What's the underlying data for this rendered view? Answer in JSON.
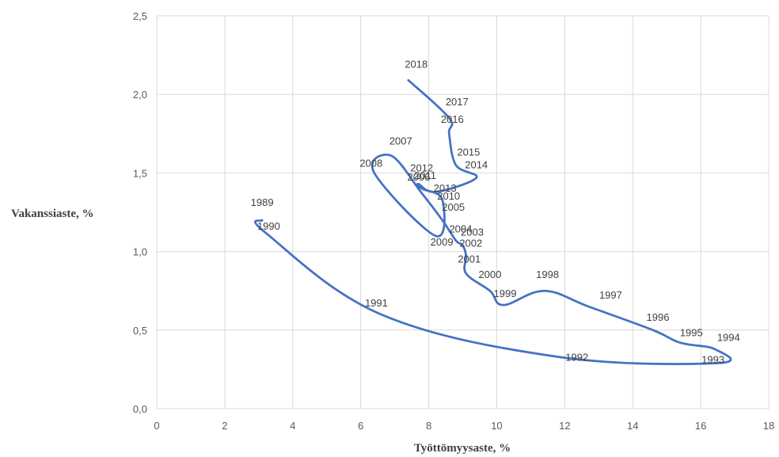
{
  "chart_data": {
    "type": "line",
    "xlabel": "Työttömyysaste, %",
    "ylabel": "Vakanssiaste, %",
    "xlim": [
      0,
      18
    ],
    "ylim": [
      0,
      2.5
    ],
    "x_ticks": [
      "0",
      "2",
      "4",
      "6",
      "8",
      "10",
      "12",
      "14",
      "16",
      "18"
    ],
    "y_ticks": [
      "0,0",
      "0,5",
      "1,0",
      "1,5",
      "2,0",
      "2,5"
    ],
    "grid": true,
    "legend": "none",
    "series_color": "#4472c4",
    "points": [
      {
        "label": "1989",
        "x": 3.1,
        "y": 1.2
      },
      {
        "label": "1990",
        "x": 3.2,
        "y": 1.12
      },
      {
        "label": "1991",
        "x": 6.6,
        "y": 0.6
      },
      {
        "label": "1992",
        "x": 11.8,
        "y": 0.33
      },
      {
        "label": "1993",
        "x": 16.5,
        "y": 0.29
      },
      {
        "label": "1994",
        "x": 16.4,
        "y": 0.38
      },
      {
        "label": "1995",
        "x": 15.4,
        "y": 0.42
      },
      {
        "label": "1996",
        "x": 14.6,
        "y": 0.5
      },
      {
        "label": "1997",
        "x": 12.7,
        "y": 0.65
      },
      {
        "label": "1998",
        "x": 11.4,
        "y": 0.75
      },
      {
        "label": "1999",
        "x": 10.2,
        "y": 0.66
      },
      {
        "label": "2000",
        "x": 9.8,
        "y": 0.75
      },
      {
        "label": "2001",
        "x": 9.1,
        "y": 0.86
      },
      {
        "label": "2002",
        "x": 9.1,
        "y": 0.97
      },
      {
        "label": "2003",
        "x": 9.0,
        "y": 1.04
      },
      {
        "label": "2004",
        "x": 8.8,
        "y": 1.07
      },
      {
        "label": "2005",
        "x": 8.4,
        "y": 1.2
      },
      {
        "label": "2006",
        "x": 7.8,
        "y": 1.37
      },
      {
        "label": "2007",
        "x": 6.9,
        "y": 1.61
      },
      {
        "label": "2008",
        "x": 6.4,
        "y": 1.5
      },
      {
        "label": "2009",
        "x": 8.2,
        "y": 1.1
      },
      {
        "label": "2010",
        "x": 8.4,
        "y": 1.33
      },
      {
        "label": "2011",
        "x": 7.8,
        "y": 1.4
      },
      {
        "label": "2012",
        "x": 7.7,
        "y": 1.43
      },
      {
        "label": "2013",
        "x": 8.2,
        "y": 1.38
      },
      {
        "label": "2014",
        "x": 9.4,
        "y": 1.47
      },
      {
        "label": "2015",
        "x": 8.8,
        "y": 1.55
      },
      {
        "label": "2016",
        "x": 8.6,
        "y": 1.75
      },
      {
        "label": "2017",
        "x": 8.6,
        "y": 1.85
      },
      {
        "label": "2018",
        "x": 7.4,
        "y": 2.09
      }
    ]
  }
}
